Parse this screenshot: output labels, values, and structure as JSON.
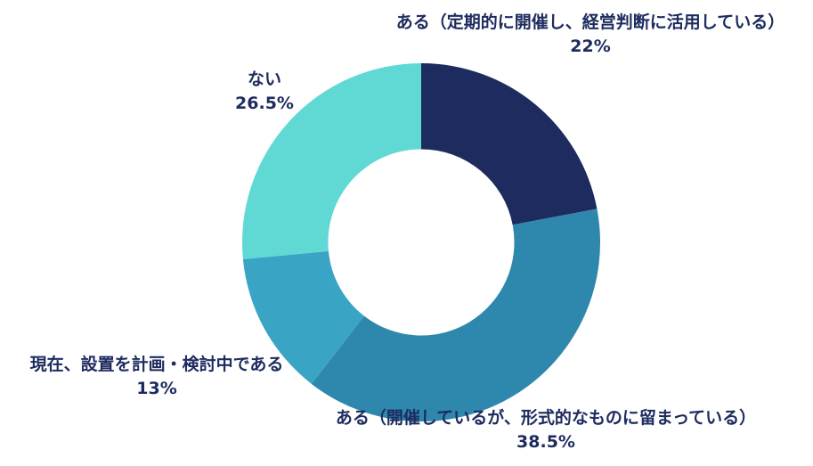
{
  "chart_data": {
    "type": "pie",
    "variant": "donut",
    "title": "",
    "start_angle_deg": -90,
    "direction": "clockwise",
    "inner_radius_ratio": 0.52,
    "label_color": "#1d2b5e",
    "background_color": "#ffffff",
    "segments": [
      {
        "label": "ある（定期的に開催し、経営判断に活用している）",
        "value": 22,
        "pct_label": "22%",
        "color": "#1d2b5e"
      },
      {
        "label": "ある（開催しているが、形式的なものに留まっている）",
        "value": 38.5,
        "pct_label": "38.5%",
        "color": "#2e87ad"
      },
      {
        "label": "現在、設置を計画・検討中である",
        "value": 13,
        "pct_label": "13%",
        "color": "#3aa4c5"
      },
      {
        "label": "ない",
        "value": 26.5,
        "pct_label": "26.5%",
        "color": "#60d9d5"
      }
    ]
  }
}
